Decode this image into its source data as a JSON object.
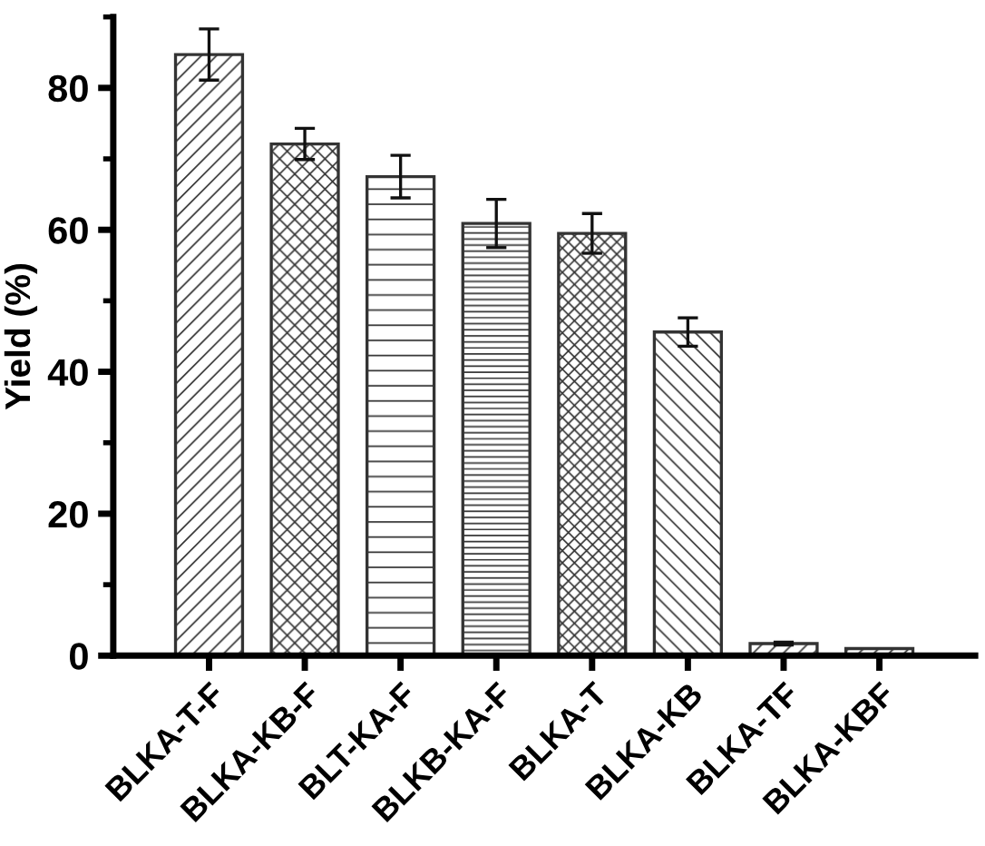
{
  "chart_data": {
    "type": "bar",
    "ylabel": "Yield (%)",
    "categories": [
      "BLKA-T-F",
      "BLKA-KB-F",
      "BLT-KA-F",
      "BLKB-KA-F",
      "BLKA-T",
      "BLKA-KB",
      "BLKA-TF",
      "BLKA-KBF"
    ],
    "values": [
      84.7,
      72.1,
      67.5,
      60.9,
      59.5,
      45.6,
      1.7,
      1.0
    ],
    "errors": [
      3.6,
      2.2,
      3.0,
      3.4,
      2.8,
      2.0,
      0.2,
      null
    ],
    "color": "#333333",
    "ylim": [
      0,
      90
    ],
    "yticks": [
      0,
      20,
      40,
      60,
      80
    ],
    "grid": false,
    "legend": false
  }
}
